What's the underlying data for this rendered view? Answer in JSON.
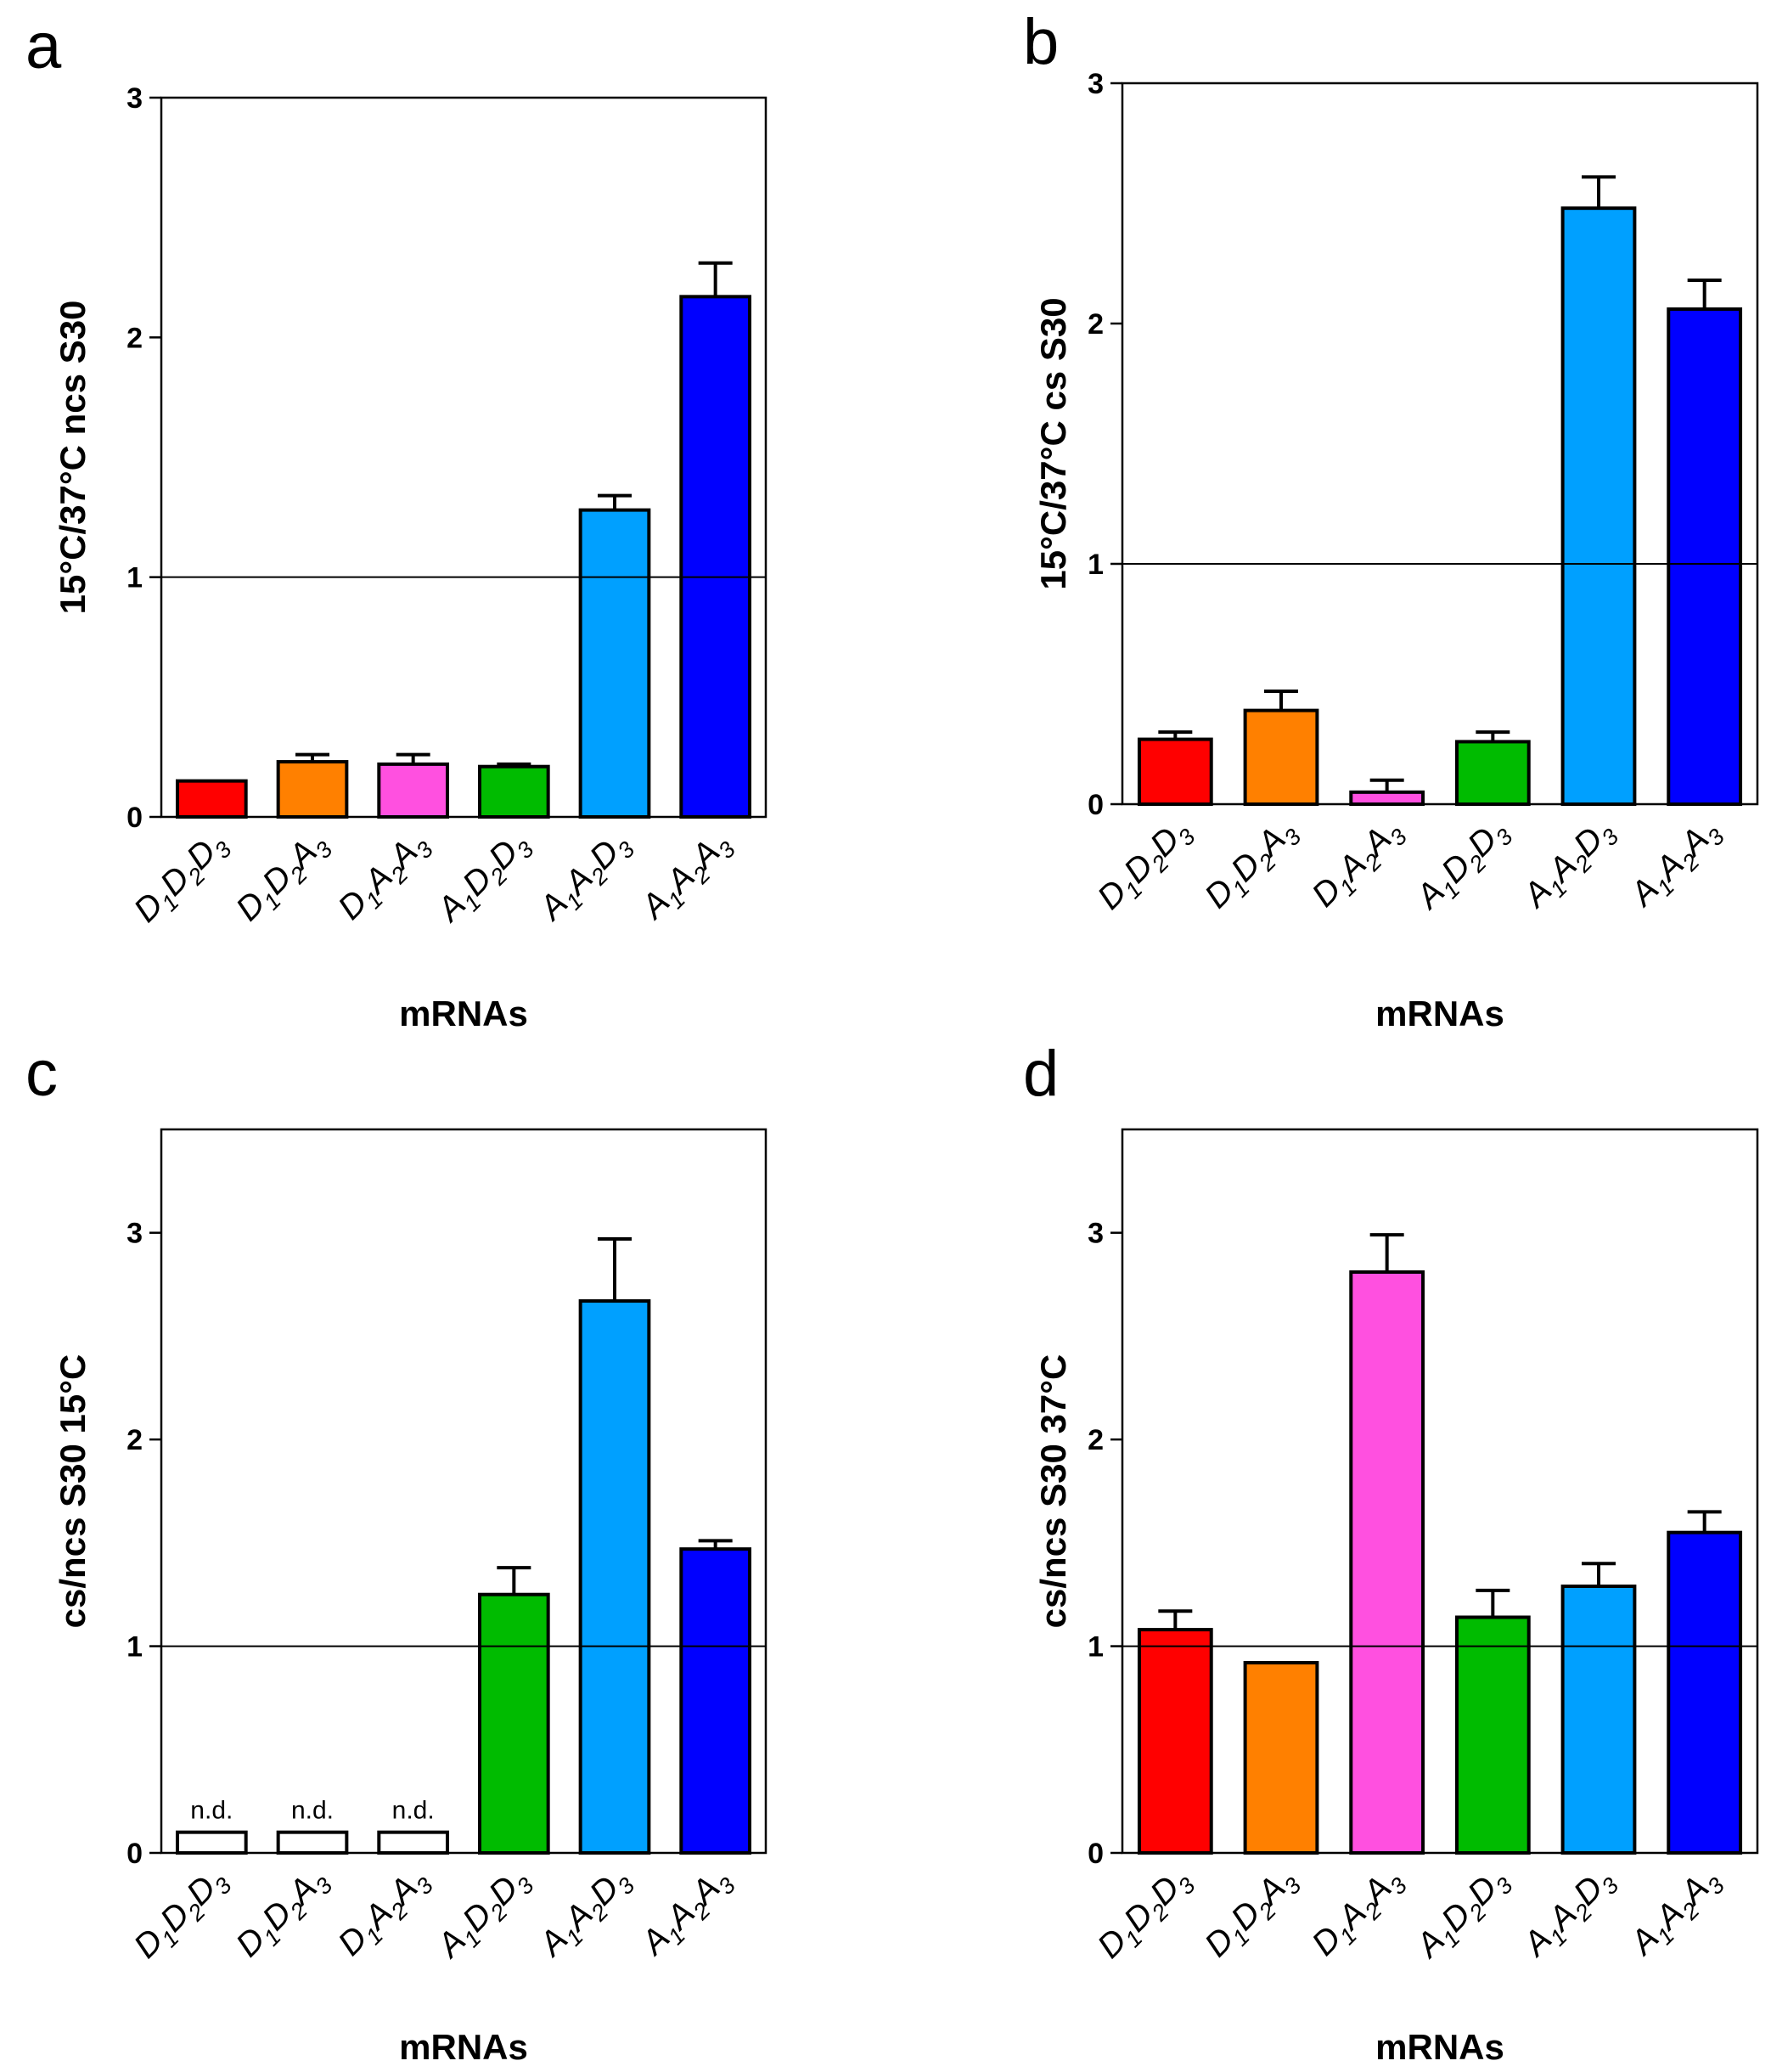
{
  "colors": {
    "D1D2D3": "#ff0000",
    "D1D2A3": "#ff8000",
    "D1A2A3": "#ff50e0",
    "A1D2D3": "#00bb00",
    "A1A2D3": "#00a0ff",
    "A1A2A3": "#0000ff",
    "none": "#ffffff"
  },
  "chart_data": [
    {
      "panel": "a",
      "type": "bar",
      "ylabel": "15°C/37°C ncs S30",
      "xlabel": "mRNAs",
      "ylim": [
        0,
        3
      ],
      "yticks": [
        "0",
        "1",
        "2",
        "3"
      ],
      "reference_line": 1,
      "categories": [
        {
          "id": "D1D2D3",
          "parts": [
            [
              "D",
              "1"
            ],
            [
              "D",
              "2"
            ],
            [
              "D",
              "3"
            ]
          ]
        },
        {
          "id": "D1D2A3",
          "parts": [
            [
              "D",
              "1"
            ],
            [
              "D",
              "2"
            ],
            [
              "A",
              "3"
            ]
          ]
        },
        {
          "id": "D1A2A3",
          "parts": [
            [
              "D",
              "1"
            ],
            [
              "A",
              "2"
            ],
            [
              "A",
              "3"
            ]
          ]
        },
        {
          "id": "A1D2D3",
          "parts": [
            [
              "A",
              "1"
            ],
            [
              "D",
              "2"
            ],
            [
              "D",
              "3"
            ]
          ]
        },
        {
          "id": "A1A2D3",
          "parts": [
            [
              "A",
              "1"
            ],
            [
              "A",
              "2"
            ],
            [
              "D",
              "3"
            ]
          ]
        },
        {
          "id": "A1A2A3",
          "parts": [
            [
              "A",
              "1"
            ],
            [
              "A",
              "2"
            ],
            [
              "A",
              "3"
            ]
          ]
        }
      ],
      "values": [
        0.15,
        0.23,
        0.22,
        0.21,
        1.28,
        2.17
      ],
      "errors": [
        0.0,
        0.03,
        0.04,
        0.01,
        0.06,
        0.14
      ],
      "bar_colors": [
        "D1D2D3",
        "D1D2A3",
        "D1A2A3",
        "A1D2D3",
        "A1A2D3",
        "A1A2A3"
      ],
      "annotations": []
    },
    {
      "panel": "b",
      "type": "bar",
      "ylabel": "15°C/37°C cs S30",
      "xlabel": "mRNAs",
      "ylim": [
        0,
        3
      ],
      "yticks": [
        "0",
        "1",
        "2",
        "3"
      ],
      "reference_line": 1,
      "categories": [
        {
          "id": "D1D2D3",
          "parts": [
            [
              "D",
              "1"
            ],
            [
              "D",
              "2"
            ],
            [
              "D",
              "3"
            ]
          ]
        },
        {
          "id": "D1D2A3",
          "parts": [
            [
              "D",
              "1"
            ],
            [
              "D",
              "2"
            ],
            [
              "A",
              "3"
            ]
          ]
        },
        {
          "id": "D1A2A3",
          "parts": [
            [
              "D",
              "1"
            ],
            [
              "A",
              "2"
            ],
            [
              "A",
              "3"
            ]
          ]
        },
        {
          "id": "A1D2D3",
          "parts": [
            [
              "A",
              "1"
            ],
            [
              "D",
              "2"
            ],
            [
              "D",
              "3"
            ]
          ]
        },
        {
          "id": "A1A2D3",
          "parts": [
            [
              "A",
              "1"
            ],
            [
              "A",
              "2"
            ],
            [
              "D",
              "3"
            ]
          ]
        },
        {
          "id": "A1A2A3",
          "parts": [
            [
              "A",
              "1"
            ],
            [
              "A",
              "2"
            ],
            [
              "A",
              "3"
            ]
          ]
        }
      ],
      "values": [
        0.27,
        0.39,
        0.05,
        0.26,
        2.48,
        2.06
      ],
      "errors": [
        0.03,
        0.08,
        0.05,
        0.04,
        0.13,
        0.12
      ],
      "bar_colors": [
        "D1D2D3",
        "D1D2A3",
        "D1A2A3",
        "A1D2D3",
        "A1A2D3",
        "A1A2A3"
      ],
      "annotations": []
    },
    {
      "panel": "c",
      "type": "bar",
      "ylabel": "cs/ncs S30 15°C",
      "xlabel": "mRNAs",
      "ylim": [
        0,
        3.5
      ],
      "yticks": [
        "0",
        "1",
        "2",
        "3"
      ],
      "reference_line": 1,
      "categories": [
        {
          "id": "D1D2D3",
          "parts": [
            [
              "D",
              "1"
            ],
            [
              "D",
              "2"
            ],
            [
              "D",
              "3"
            ]
          ]
        },
        {
          "id": "D1D2A3",
          "parts": [
            [
              "D",
              "1"
            ],
            [
              "D",
              "2"
            ],
            [
              "A",
              "3"
            ]
          ]
        },
        {
          "id": "D1A2A3",
          "parts": [
            [
              "D",
              "1"
            ],
            [
              "A",
              "2"
            ],
            [
              "A",
              "3"
            ]
          ]
        },
        {
          "id": "A1D2D3",
          "parts": [
            [
              "A",
              "1"
            ],
            [
              "D",
              "2"
            ],
            [
              "D",
              "3"
            ]
          ]
        },
        {
          "id": "A1A2D3",
          "parts": [
            [
              "A",
              "1"
            ],
            [
              "A",
              "2"
            ],
            [
              "D",
              "3"
            ]
          ]
        },
        {
          "id": "A1A2A3",
          "parts": [
            [
              "A",
              "1"
            ],
            [
              "A",
              "2"
            ],
            [
              "A",
              "3"
            ]
          ]
        }
      ],
      "values": [
        0.1,
        0.1,
        0.1,
        1.25,
        2.67,
        1.47
      ],
      "errors": [
        0.0,
        0.0,
        0.0,
        0.13,
        0.3,
        0.04
      ],
      "bar_colors": [
        "none",
        "none",
        "none",
        "A1D2D3",
        "A1A2D3",
        "A1A2A3"
      ],
      "annotations": [
        "n.d.",
        "n.d.",
        "n.d.",
        "",
        "",
        ""
      ]
    },
    {
      "panel": "d",
      "type": "bar",
      "ylabel": "cs/ncs S30 37°C",
      "xlabel": "mRNAs",
      "ylim": [
        0,
        3.5
      ],
      "yticks": [
        "0",
        "1",
        "2",
        "3"
      ],
      "reference_line": 1,
      "categories": [
        {
          "id": "D1D2D3",
          "parts": [
            [
              "D",
              "1"
            ],
            [
              "D",
              "2"
            ],
            [
              "D",
              "3"
            ]
          ]
        },
        {
          "id": "D1D2A3",
          "parts": [
            [
              "D",
              "1"
            ],
            [
              "D",
              "2"
            ],
            [
              "A",
              "3"
            ]
          ]
        },
        {
          "id": "D1A2A3",
          "parts": [
            [
              "D",
              "1"
            ],
            [
              "A",
              "2"
            ],
            [
              "A",
              "3"
            ]
          ]
        },
        {
          "id": "A1D2D3",
          "parts": [
            [
              "A",
              "1"
            ],
            [
              "D",
              "2"
            ],
            [
              "D",
              "3"
            ]
          ]
        },
        {
          "id": "A1A2D3",
          "parts": [
            [
              "A",
              "1"
            ],
            [
              "A",
              "2"
            ],
            [
              "D",
              "3"
            ]
          ]
        },
        {
          "id": "A1A2A3",
          "parts": [
            [
              "A",
              "1"
            ],
            [
              "A",
              "2"
            ],
            [
              "A",
              "3"
            ]
          ]
        }
      ],
      "values": [
        1.08,
        0.92,
        2.81,
        1.14,
        1.29,
        1.55
      ],
      "errors": [
        0.09,
        0.0,
        0.18,
        0.13,
        0.11,
        0.1
      ],
      "bar_colors": [
        "D1D2D3",
        "D1D2A3",
        "D1A2A3",
        "A1D2D3",
        "A1A2D3",
        "A1A2A3"
      ],
      "annotations": []
    }
  ]
}
